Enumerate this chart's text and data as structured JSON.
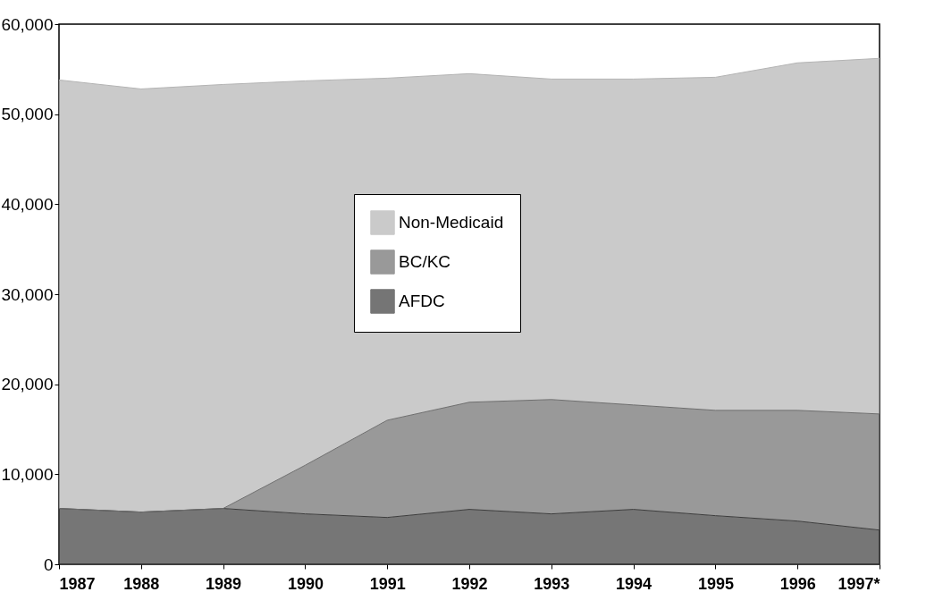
{
  "chart_data": {
    "type": "area",
    "stacked": true,
    "categories": [
      "1987",
      "1988",
      "1989",
      "1990",
      "1991",
      "1992",
      "1993",
      "1994",
      "1995",
      "1996",
      "1997*"
    ],
    "series": [
      {
        "name": "AFDC",
        "color": "#3c3c3c",
        "values": [
          6200,
          5800,
          6200,
          5600,
          5200,
          6100,
          5600,
          6100,
          5400,
          4800,
          3800
        ]
      },
      {
        "name": "BC/KC",
        "color": "#6e6e6e",
        "values": [
          0,
          0,
          0,
          5400,
          10800,
          11900,
          12700,
          11600,
          11700,
          12300,
          12900
        ]
      },
      {
        "name": "Non-Medicaid",
        "color": "#b4b4b4",
        "values": [
          47600,
          47000,
          47100,
          42700,
          38000,
          36500,
          35600,
          36200,
          37000,
          38600,
          39500
        ]
      }
    ],
    "ylim": [
      0,
      60000
    ],
    "yticks": [
      {
        "value": 0,
        "label": "0"
      },
      {
        "value": 10000,
        "label": "10,000"
      },
      {
        "value": 20000,
        "label": "20,000"
      },
      {
        "value": 30000,
        "label": "30,000"
      },
      {
        "value": 40000,
        "label": "40,000"
      },
      {
        "value": 50000,
        "label": "50,000"
      },
      {
        "value": 60000,
        "label": "60,000"
      }
    ],
    "legend": "top",
    "grid": false
  }
}
